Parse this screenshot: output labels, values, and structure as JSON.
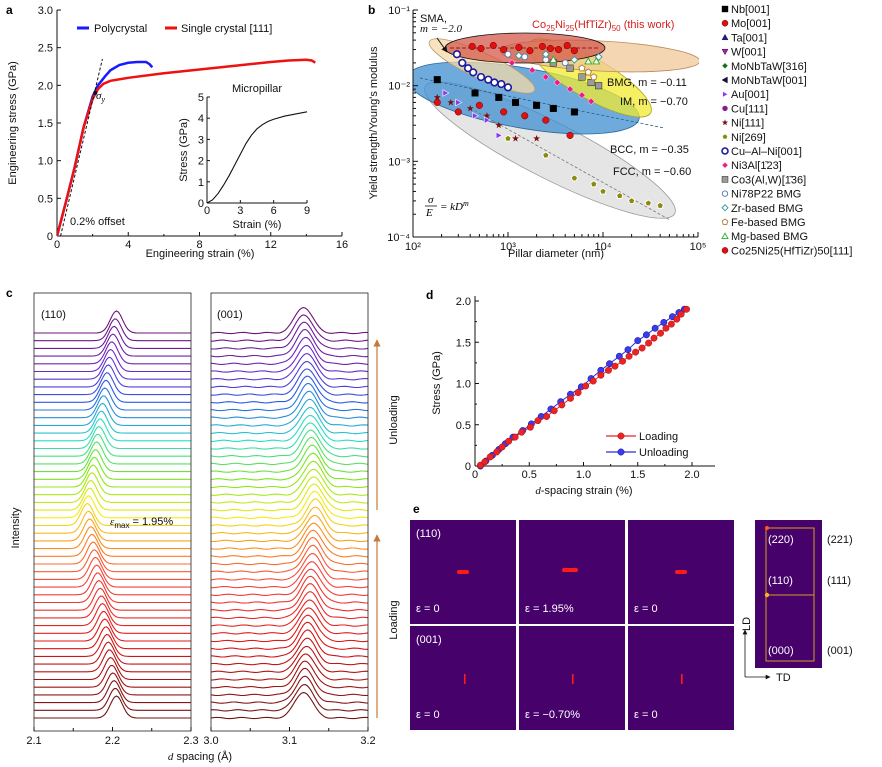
{
  "panels": {
    "a": "a",
    "b": "b",
    "c": "c",
    "d": "d",
    "e": "e"
  },
  "chart_data": [
    {
      "id": "a",
      "type": "line",
      "xlabel": "Engineering strain (%)",
      "ylabel": "Engineering stress (GPa)",
      "xlim": [
        0,
        16
      ],
      "ylim": [
        0,
        3.0
      ],
      "xticks": [
        "0",
        "4",
        "8",
        "12",
        "16"
      ],
      "yticks": [
        "0",
        "0.5",
        "1.0",
        "1.5",
        "2.0",
        "2.5",
        "3.0"
      ],
      "legend": [
        "Polycrystal",
        "Single crystal [111]"
      ],
      "legend_position": "top",
      "annotations": [
        "0.2% offset",
        "σy"
      ],
      "series": [
        {
          "name": "Polycrystal",
          "color": "#1a1aff",
          "x": [
            0,
            0.5,
            1.0,
            1.5,
            2.0,
            2.3,
            2.7,
            3.0,
            3.5,
            4.0,
            4.5,
            5.0,
            5.2,
            5.35
          ],
          "y": [
            0,
            0.45,
            0.92,
            1.45,
            1.85,
            2.0,
            2.12,
            2.2,
            2.27,
            2.3,
            2.31,
            2.31,
            2.28,
            2.24
          ]
        },
        {
          "name": "Single crystal [111]",
          "color": "#ee1111",
          "x": [
            0,
            0.5,
            1.0,
            1.5,
            2.0,
            2.3,
            2.6,
            3.0,
            4.0,
            6.0,
            8.0,
            10.0,
            12.0,
            13.0,
            14.0,
            14.3,
            14.5
          ],
          "y": [
            0,
            0.45,
            0.92,
            1.45,
            1.82,
            1.95,
            2.02,
            2.06,
            2.1,
            2.16,
            2.21,
            2.26,
            2.31,
            2.33,
            2.34,
            2.33,
            2.3
          ]
        },
        {
          "name": "0.2% offset",
          "color": "#111111",
          "dash": true,
          "x": [
            0.2,
            2.55
          ],
          "y": [
            0,
            2.35
          ]
        }
      ],
      "inset": {
        "title": "Micropillar",
        "xlabel": "Strain (%)",
        "ylabel": "Stress (GPa)",
        "xlim": [
          0,
          9
        ],
        "ylim": [
          0,
          5
        ],
        "xticks": [
          "0",
          "3",
          "6",
          "9"
        ],
        "yticks": [
          "0",
          "1",
          "2",
          "3",
          "4",
          "5"
        ],
        "series": [
          {
            "name": "Micropillar",
            "color": "#111111",
            "x": [
              0,
              0.5,
              1.0,
              1.5,
              2.0,
              2.5,
              3.0,
              3.5,
              4.0,
              4.5,
              5.0,
              5.5,
              6.0,
              7.0,
              8.0,
              9.0
            ],
            "y": [
              0,
              0.15,
              0.45,
              0.85,
              1.3,
              1.8,
              2.3,
              2.8,
              3.2,
              3.5,
              3.7,
              3.85,
              3.95,
              4.1,
              4.2,
              4.3
            ]
          }
        ]
      }
    },
    {
      "id": "b",
      "type": "scatter",
      "xscale": "log",
      "yscale": "log",
      "xlabel": "Pillar diameter (nm)",
      "ylabel": "Yield strength/Young's modulus",
      "xlim": [
        100,
        100000
      ],
      "ylim": [
        0.0001,
        0.1
      ],
      "xticks": [
        "10²",
        "10³",
        "10⁴",
        "10⁵"
      ],
      "yticks": [
        "10⁻⁴",
        "10⁻³",
        "10⁻²",
        "10⁻¹"
      ],
      "annotations": [
        {
          "text": "SMA,",
          "sub": "m = −2.0"
        },
        {
          "text": "Co25Ni25(HfTiZr)50 (this work)",
          "color": "#d42020"
        },
        {
          "text": "BMG, m = −0.11"
        },
        {
          "text": "IM, m = −0.70"
        },
        {
          "text": "BCC, m = −0.35"
        },
        {
          "text": "FCC, m = −0.60"
        },
        {
          "text": "σ/E = kD^m"
        }
      ],
      "regions": [
        {
          "name": "FCC",
          "color": "#d8d8d8",
          "m": -0.6
        },
        {
          "name": "BCC",
          "color": "#3d8fd0",
          "m": -0.35
        },
        {
          "name": "IM",
          "color": "#f5ee3a",
          "m": -0.7
        },
        {
          "name": "SMA",
          "color": "#f4d9a8",
          "m": -2.0
        },
        {
          "name": "BMG",
          "color": "#f0c898",
          "m": -0.11
        },
        {
          "name": "This work",
          "color": "#d85a4a",
          "m": 0
        }
      ],
      "legend": [
        {
          "label": "Nb[001]",
          "marker": "square",
          "color": "#000000"
        },
        {
          "label": "Mo[001]",
          "marker": "circle",
          "color": "#e01010"
        },
        {
          "label": "Ta[001]",
          "marker": "triangle-up",
          "color": "#1a1aa0"
        },
        {
          "label": "W[001]",
          "marker": "triangle-down",
          "color": "#c010c0"
        },
        {
          "label": "MoNbTaW[316]",
          "marker": "diamond",
          "color": "#1a6a1a"
        },
        {
          "label": "MoNbTaW[001]",
          "marker": "triangle-left",
          "color": "#10104a"
        },
        {
          "label": "Au[001]",
          "marker": "triangle-right",
          "color": "#8a3aef"
        },
        {
          "label": "Cu[111]",
          "marker": "half-circle",
          "color": "#8a1a8a"
        },
        {
          "label": "Ni[111]",
          "marker": "star",
          "color": "#7a1010"
        },
        {
          "label": "Ni[269]",
          "marker": "pentagon-half",
          "color": "#8a8a10"
        },
        {
          "label": "Cu–Al–Ni[001]",
          "marker": "circle-dot",
          "color": "#1a1aa0"
        },
        {
          "label": "Ni3Al[1̄23]",
          "marker": "diamond",
          "color": "#ef1a8a"
        },
        {
          "label": "Co3(Al,W)[1̄36]",
          "marker": "square",
          "color": "#9a9a9a"
        },
        {
          "label": "Ni78P22 BMG",
          "marker": "circle-open",
          "color": "#4a7ab0"
        },
        {
          "label": "Zr-based BMG",
          "marker": "diamond-open",
          "color": "#2a9a9a"
        },
        {
          "label": "Fe-based BMG",
          "marker": "pentagon-open",
          "color": "#b07a3a"
        },
        {
          "label": "Mg-based BMG",
          "marker": "triangle-open",
          "color": "#2ab02a"
        },
        {
          "label": "Co25Ni25(HfTiZr)50[111]",
          "marker": "circle",
          "color": "#e01010"
        }
      ],
      "series": [
        {
          "name": "Co25Ni25(HfTiZr)50[111]",
          "x": [
            420,
            520,
            700,
            900,
            1300,
            1700,
            2300,
            2800,
            3400,
            4200,
            5000
          ],
          "y": [
            0.033,
            0.031,
            0.034,
            0.03,
            0.032,
            0.029,
            0.033,
            0.031,
            0.03,
            0.034,
            0.029
          ]
        },
        {
          "name": "Cu–Al–Ni[001]",
          "x": [
            290,
            330,
            380,
            430,
            520,
            620,
            720,
            850,
            1000
          ],
          "y": [
            0.026,
            0.02,
            0.017,
            0.015,
            0.013,
            0.012,
            0.011,
            0.0105,
            0.0095
          ]
        },
        {
          "name": "Ni3Al[1̄23]",
          "x": [
            1100,
            1800,
            2500,
            3300,
            4500,
            6000,
            7500
          ],
          "y": [
            0.02,
            0.016,
            0.013,
            0.011,
            0.009,
            0.0075,
            0.0062
          ]
        },
        {
          "name": "Co3(Al,W)[1̄36]",
          "x": [
            3000,
            4500,
            6000,
            7500,
            9000
          ],
          "y": [
            0.02,
            0.017,
            0.013,
            0.011,
            0.01
          ]
        },
        {
          "name": "Nb[001]",
          "x": [
            180,
            450,
            800,
            1200,
            2000,
            3000,
            5000
          ],
          "y": [
            0.012,
            0.008,
            0.007,
            0.006,
            0.0055,
            0.005,
            0.0045
          ]
        },
        {
          "name": "Mo[001]",
          "x": [
            180,
            300,
            500,
            900,
            1500,
            2500,
            4500
          ],
          "y": [
            0.006,
            0.0045,
            0.0055,
            0.0045,
            0.004,
            0.0035,
            0.0022
          ]
        },
        {
          "name": "Ni[111]",
          "x": [
            180,
            250,
            400,
            600,
            800,
            1200,
            2000
          ],
          "y": [
            0.007,
            0.006,
            0.005,
            0.004,
            0.003,
            0.002,
            0.002
          ]
        },
        {
          "name": "Au[001]",
          "x": [
            220,
            300,
            450,
            600,
            800
          ],
          "y": [
            0.008,
            0.006,
            0.004,
            0.0035,
            0.0022
          ]
        },
        {
          "name": "Ni[269]",
          "x": [
            1000,
            2500,
            5000,
            8000,
            10000,
            15000,
            20000,
            30000,
            40000
          ],
          "y": [
            0.002,
            0.0012,
            0.0006,
            0.0005,
            0.0004,
            0.00035,
            0.0003,
            0.00028,
            0.00026
          ]
        },
        {
          "name": "Ni78P22 BMG",
          "x": [
            1000,
            1500,
            2500,
            4000
          ],
          "y": [
            0.026,
            0.024,
            0.022,
            0.02
          ]
        },
        {
          "name": "Zr-based BMG",
          "x": [
            1300,
            2500,
            5000,
            9000
          ],
          "y": [
            0.025,
            0.026,
            0.022,
            0.024
          ]
        },
        {
          "name": "Fe-based BMG",
          "x": [
            6000,
            7000,
            8000
          ],
          "y": [
            0.017,
            0.015,
            0.013
          ]
        },
        {
          "name": "Mg-based BMG",
          "x": [
            3000,
            7000,
            8500
          ],
          "y": [
            0.022,
            0.021,
            0.021
          ]
        }
      ]
    },
    {
      "id": "c",
      "type": "line",
      "title_left": "(110)",
      "title_right": "(001)",
      "xlabel": "d spacing (Å)",
      "ylabel": "Intensity",
      "left_xlim": [
        2.1,
        2.3
      ],
      "right_xlim": [
        3.0,
        3.2
      ],
      "left_xticks": [
        "2.1",
        "2.2",
        "2.3"
      ],
      "right_xticks": [
        "3.0",
        "3.1",
        "3.2"
      ],
      "annotation": "εmax = 1.95%",
      "arrows": [
        "Loading",
        "Unloading"
      ],
      "n_profiles": 51,
      "left_peak_center": {
        "start": 2.205,
        "max_strain": 2.168,
        "end": 2.205
      },
      "right_peak_center": {
        "start": 3.118,
        "max_strain": 3.133,
        "end": 3.118
      }
    },
    {
      "id": "d",
      "type": "line",
      "xlabel": "d-spacing strain (%)",
      "ylabel": "Stress (GPa)",
      "xlim": [
        0,
        2.15
      ],
      "ylim": [
        0,
        2.05
      ],
      "xticks": [
        "0",
        "0.5",
        "1.0",
        "1.5",
        "2.0"
      ],
      "yticks": [
        "0",
        "0.5",
        "1.0",
        "1.5",
        "2.0"
      ],
      "legend": [
        "Loading",
        "Unloading"
      ],
      "legend_position": "bottom-right",
      "series": [
        {
          "name": "Unloading",
          "color": "#2a2adf",
          "x": [
            0.05,
            0.1,
            0.16,
            0.22,
            0.28,
            0.35,
            0.44,
            0.52,
            0.61,
            0.7,
            0.79,
            0.88,
            0.98,
            1.07,
            1.16,
            1.24,
            1.33,
            1.41,
            1.5,
            1.58,
            1.66,
            1.74,
            1.82,
            1.88,
            1.93
          ],
          "y": [
            0.0,
            0.06,
            0.13,
            0.2,
            0.27,
            0.35,
            0.43,
            0.51,
            0.6,
            0.69,
            0.78,
            0.87,
            0.96,
            1.06,
            1.16,
            1.24,
            1.33,
            1.41,
            1.52,
            1.59,
            1.67,
            1.74,
            1.81,
            1.86,
            1.9
          ]
        },
        {
          "name": "Loading",
          "color": "#ee2222",
          "x": [
            0.05,
            0.09,
            0.14,
            0.2,
            0.25,
            0.31,
            0.37,
            0.43,
            0.51,
            0.58,
            0.66,
            0.73,
            0.8,
            0.88,
            0.95,
            1.02,
            1.09,
            1.16,
            1.23,
            1.29,
            1.36,
            1.42,
            1.48,
            1.54,
            1.6,
            1.65,
            1.71,
            1.76,
            1.81,
            1.86,
            1.9,
            1.95
          ],
          "y": [
            0.01,
            0.05,
            0.11,
            0.17,
            0.23,
            0.3,
            0.35,
            0.41,
            0.47,
            0.55,
            0.6,
            0.67,
            0.74,
            0.82,
            0.89,
            0.97,
            1.03,
            1.1,
            1.16,
            1.21,
            1.27,
            1.33,
            1.38,
            1.43,
            1.49,
            1.55,
            1.61,
            1.67,
            1.72,
            1.78,
            1.84,
            1.9
          ]
        }
      ]
    },
    {
      "id": "e",
      "type": "heatmap",
      "rows": [
        {
          "label": "(110)",
          "tiles": [
            "ε = 0",
            "ε = 1.95%",
            "ε = 0"
          ],
          "spot": "horizontal"
        },
        {
          "label": "(001)",
          "tiles": [
            "ε = 0",
            "ε = −0.70%",
            "ε = 0"
          ],
          "spot": "vertical"
        }
      ],
      "background": "#46016b",
      "spot_color": "#ff1a1a",
      "reference_labels_inside": [
        "(220)",
        "(110)",
        "(000)"
      ],
      "reference_labels_outside": [
        "(221)",
        "(111)",
        "(001)"
      ],
      "axes": [
        "LD",
        "TD"
      ]
    }
  ]
}
